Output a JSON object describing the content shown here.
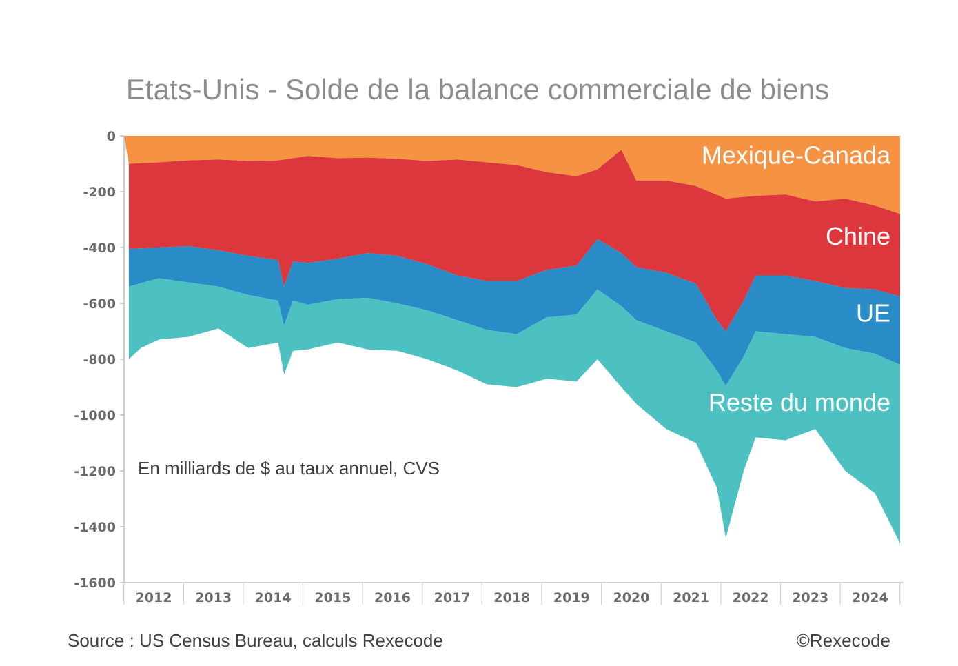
{
  "chart_data": {
    "type": "area",
    "title": "Etats-Unis - Solde de la balance commerciale de biens",
    "unit_note": "En milliards de $ au taux annuel, CVS",
    "ylim": [
      -1600,
      0
    ],
    "yticks": [
      0,
      -200,
      -400,
      -600,
      -800,
      -1000,
      -1200,
      -1400,
      -1600
    ],
    "ytick_labels": [
      "0",
      "-200",
      "-400",
      "-600",
      "-800",
      "-1000",
      "-1200",
      "-1400",
      "-1600"
    ],
    "x_range": [
      2011.92,
      2024.92
    ],
    "years": [
      "2012",
      "2013",
      "2014",
      "2015",
      "2016",
      "2017",
      "2018",
      "2019",
      "2020",
      "2021",
      "2022",
      "2023",
      "2024"
    ],
    "grid": false,
    "legend": "inline labels",
    "series": [
      {
        "name": "Mexique-Canada",
        "color": "#f59342",
        "points": [
          [
            2012.0,
            -100
          ],
          [
            2012.5,
            -95
          ],
          [
            2013.0,
            -88
          ],
          [
            2013.5,
            -85
          ],
          [
            2014.0,
            -90
          ],
          [
            2014.5,
            -88
          ],
          [
            2015.0,
            -72
          ],
          [
            2015.5,
            -80
          ],
          [
            2016.0,
            -78
          ],
          [
            2016.5,
            -82
          ],
          [
            2017.0,
            -90
          ],
          [
            2017.5,
            -85
          ],
          [
            2018.0,
            -95
          ],
          [
            2018.5,
            -105
          ],
          [
            2019.0,
            -130
          ],
          [
            2019.5,
            -145
          ],
          [
            2019.85,
            -120
          ],
          [
            2020.25,
            -50
          ],
          [
            2020.5,
            -160
          ],
          [
            2021.0,
            -160
          ],
          [
            2021.5,
            -180
          ],
          [
            2022.0,
            -225
          ],
          [
            2022.5,
            -215
          ],
          [
            2023.0,
            -210
          ],
          [
            2023.5,
            -235
          ],
          [
            2024.0,
            -225
          ],
          [
            2024.5,
            -250
          ],
          [
            2024.92,
            -280
          ]
        ]
      },
      {
        "name": "Chine",
        "color": "#db373c",
        "points": [
          [
            2012.0,
            -405
          ],
          [
            2012.5,
            -400
          ],
          [
            2013.0,
            -395
          ],
          [
            2013.5,
            -410
          ],
          [
            2014.0,
            -430
          ],
          [
            2014.5,
            -445
          ],
          [
            2014.6,
            -540
          ],
          [
            2014.75,
            -450
          ],
          [
            2015.0,
            -455
          ],
          [
            2015.5,
            -440
          ],
          [
            2016.0,
            -420
          ],
          [
            2016.5,
            -430
          ],
          [
            2017.0,
            -460
          ],
          [
            2017.5,
            -500
          ],
          [
            2018.0,
            -520
          ],
          [
            2018.5,
            -520
          ],
          [
            2019.0,
            -480
          ],
          [
            2019.5,
            -465
          ],
          [
            2019.85,
            -370
          ],
          [
            2020.25,
            -420
          ],
          [
            2020.5,
            -470
          ],
          [
            2021.0,
            -490
          ],
          [
            2021.5,
            -530
          ],
          [
            2021.85,
            -660
          ],
          [
            2022.0,
            -700
          ],
          [
            2022.3,
            -590
          ],
          [
            2022.5,
            -500
          ],
          [
            2023.0,
            -500
          ],
          [
            2023.5,
            -520
          ],
          [
            2024.0,
            -545
          ],
          [
            2024.5,
            -550
          ],
          [
            2024.92,
            -575
          ]
        ]
      },
      {
        "name": "UE",
        "color": "#2a8cc7",
        "points": [
          [
            2012.0,
            -540
          ],
          [
            2012.5,
            -510
          ],
          [
            2013.0,
            -525
          ],
          [
            2013.5,
            -540
          ],
          [
            2014.0,
            -570
          ],
          [
            2014.5,
            -590
          ],
          [
            2014.6,
            -680
          ],
          [
            2014.75,
            -590
          ],
          [
            2015.0,
            -605
          ],
          [
            2015.5,
            -585
          ],
          [
            2016.0,
            -580
          ],
          [
            2016.5,
            -600
          ],
          [
            2017.0,
            -625
          ],
          [
            2017.5,
            -660
          ],
          [
            2018.0,
            -695
          ],
          [
            2018.5,
            -710
          ],
          [
            2019.0,
            -650
          ],
          [
            2019.5,
            -640
          ],
          [
            2019.85,
            -550
          ],
          [
            2020.25,
            -610
          ],
          [
            2020.5,
            -660
          ],
          [
            2021.0,
            -700
          ],
          [
            2021.5,
            -740
          ],
          [
            2021.85,
            -840
          ],
          [
            2022.0,
            -895
          ],
          [
            2022.3,
            -790
          ],
          [
            2022.5,
            -700
          ],
          [
            2023.0,
            -710
          ],
          [
            2023.5,
            -720
          ],
          [
            2024.0,
            -760
          ],
          [
            2024.5,
            -780
          ],
          [
            2024.92,
            -820
          ]
        ]
      },
      {
        "name": "Reste du monde",
        "color": "#4dc1c1",
        "points": [
          [
            2012.0,
            -800
          ],
          [
            2012.2,
            -760
          ],
          [
            2012.5,
            -730
          ],
          [
            2013.0,
            -720
          ],
          [
            2013.5,
            -690
          ],
          [
            2014.0,
            -760
          ],
          [
            2014.5,
            -740
          ],
          [
            2014.6,
            -855
          ],
          [
            2014.75,
            -770
          ],
          [
            2015.0,
            -765
          ],
          [
            2015.5,
            -740
          ],
          [
            2016.0,
            -765
          ],
          [
            2016.5,
            -770
          ],
          [
            2017.0,
            -800
          ],
          [
            2017.5,
            -840
          ],
          [
            2018.0,
            -890
          ],
          [
            2018.5,
            -900
          ],
          [
            2019.0,
            -870
          ],
          [
            2019.5,
            -880
          ],
          [
            2019.85,
            -800
          ],
          [
            2020.25,
            -900
          ],
          [
            2020.5,
            -960
          ],
          [
            2021.0,
            -1050
          ],
          [
            2021.5,
            -1100
          ],
          [
            2021.85,
            -1260
          ],
          [
            2022.0,
            -1440
          ],
          [
            2022.3,
            -1200
          ],
          [
            2022.5,
            -1080
          ],
          [
            2023.0,
            -1090
          ],
          [
            2023.5,
            -1050
          ],
          [
            2024.0,
            -1200
          ],
          [
            2024.5,
            -1280
          ],
          [
            2024.92,
            -1460
          ]
        ]
      }
    ]
  },
  "footer": {
    "source": "Source : US Census Bureau, calculs Rexecode",
    "copyright": "©Rexecode"
  }
}
